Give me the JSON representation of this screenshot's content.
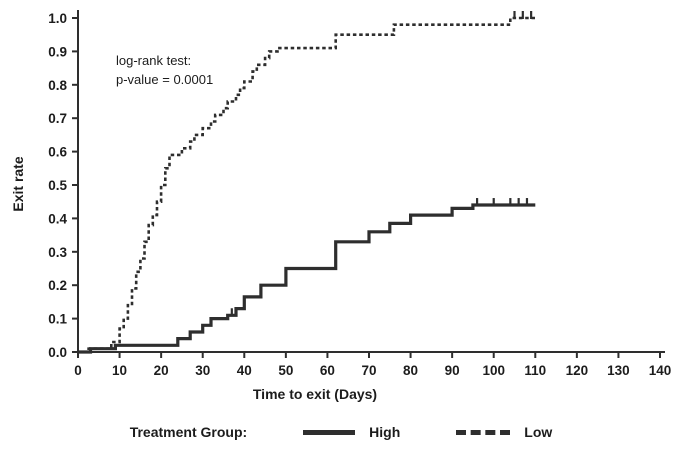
{
  "chart": {
    "ylabel": "Exit rate",
    "xlabel": "Time to exit (Days)",
    "annotation_line1": "log-rank test:",
    "annotation_line2": "p-value = 0.0001",
    "legend_title": "Treatment Group:"
  },
  "chart_data": {
    "type": "line",
    "subtype": "step-survival-curve",
    "title": "",
    "xlabel": "Time to exit (Days)",
    "ylabel": "Exit rate",
    "xlim": [
      0,
      140
    ],
    "ylim": [
      0,
      1.0
    ],
    "x_ticks": [
      0,
      10,
      20,
      30,
      40,
      50,
      60,
      70,
      80,
      90,
      100,
      110,
      120,
      130,
      140
    ],
    "y_ticks": [
      0,
      0.1,
      0.2,
      0.3,
      0.4,
      0.5,
      0.6,
      0.7,
      0.8,
      0.9,
      1.0
    ],
    "grid": false,
    "legend_position": "bottom",
    "annotation": "log-rank test: p-value = 0.0001",
    "line_color": "#2e2e2e",
    "series": [
      {
        "name": "High",
        "style": "solid",
        "width": 3.2,
        "points": [
          [
            0,
            0
          ],
          [
            3,
            0.01
          ],
          [
            9,
            0.02
          ],
          [
            24,
            0.04
          ],
          [
            27,
            0.06
          ],
          [
            30,
            0.08
          ],
          [
            32,
            0.1
          ],
          [
            36,
            0.11
          ],
          [
            38,
            0.13
          ],
          [
            40,
            0.165
          ],
          [
            44,
            0.2
          ],
          [
            50,
            0.25
          ],
          [
            62,
            0.33
          ],
          [
            70,
            0.36
          ],
          [
            75,
            0.385
          ],
          [
            80,
            0.41
          ],
          [
            90,
            0.43
          ],
          [
            95,
            0.44
          ],
          [
            110,
            0.44
          ]
        ],
        "censors": [
          [
            37,
            0.11
          ],
          [
            96,
            0.44
          ],
          [
            100,
            0.44
          ],
          [
            104,
            0.44
          ],
          [
            106,
            0.44
          ],
          [
            108,
            0.44
          ]
        ]
      },
      {
        "name": "Low",
        "style": "dashed",
        "width": 2.6,
        "points": [
          [
            0,
            0
          ],
          [
            2,
            0.01
          ],
          [
            8,
            0.03
          ],
          [
            10,
            0.07
          ],
          [
            11,
            0.1
          ],
          [
            12,
            0.14
          ],
          [
            13,
            0.19
          ],
          [
            14,
            0.24
          ],
          [
            15,
            0.28
          ],
          [
            16,
            0.33
          ],
          [
            17,
            0.38
          ],
          [
            18,
            0.41
          ],
          [
            19,
            0.45
          ],
          [
            20,
            0.5
          ],
          [
            21,
            0.55
          ],
          [
            22,
            0.59
          ],
          [
            25,
            0.61
          ],
          [
            27,
            0.63
          ],
          [
            28,
            0.65
          ],
          [
            30,
            0.67
          ],
          [
            32,
            0.69
          ],
          [
            33,
            0.71
          ],
          [
            35,
            0.73
          ],
          [
            36,
            0.75
          ],
          [
            38,
            0.77
          ],
          [
            39,
            0.79
          ],
          [
            40,
            0.81
          ],
          [
            42,
            0.84
          ],
          [
            43,
            0.86
          ],
          [
            45,
            0.88
          ],
          [
            46,
            0.9
          ],
          [
            48,
            0.91
          ],
          [
            62,
            0.95
          ],
          [
            76,
            0.98
          ],
          [
            104,
            1.0
          ],
          [
            110,
            1.0
          ]
        ],
        "censors": [
          [
            105,
            1.0
          ],
          [
            107,
            1.0
          ],
          [
            109,
            1.0
          ]
        ]
      }
    ]
  }
}
